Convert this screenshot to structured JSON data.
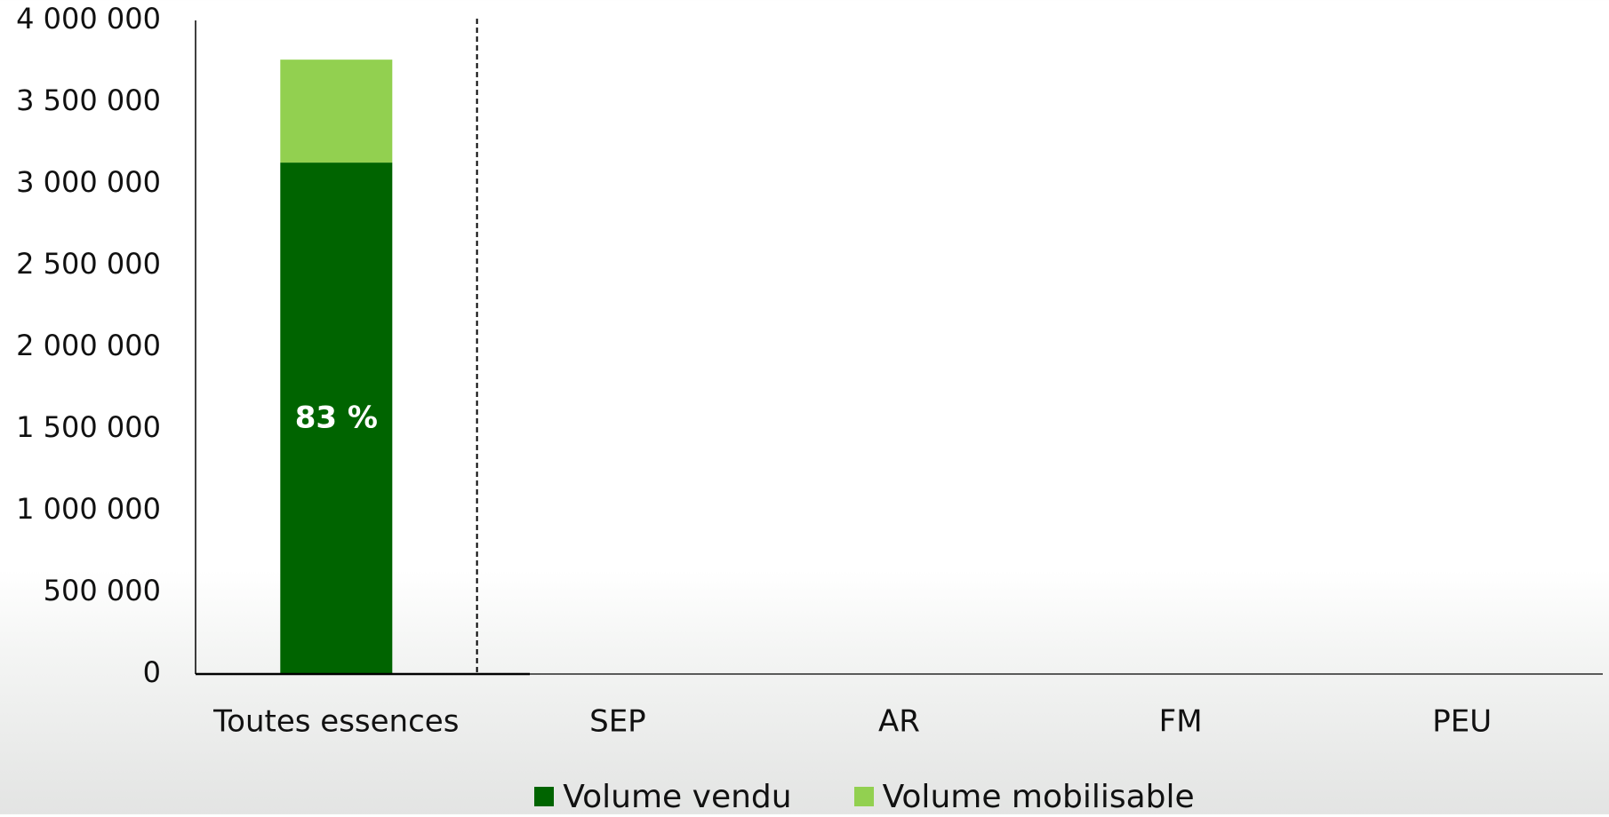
{
  "chart_data": {
    "type": "bar",
    "stacked": true,
    "categories": [
      "Toutes essences",
      "SEP",
      "AR",
      "FM",
      "PEU"
    ],
    "series": [
      {
        "name": "Volume vendu",
        "color": "#006400",
        "values": [
          3130000,
          0,
          0,
          0,
          0
        ]
      },
      {
        "name": "Volume mobilisable",
        "color": "#92d050",
        "values": [
          630000,
          0,
          0,
          0,
          0
        ]
      }
    ],
    "bar_labels": [
      "83 %",
      "",
      "",
      "",
      ""
    ],
    "ylim": [
      0,
      4000000
    ],
    "yticks": [
      0,
      500000,
      1000000,
      1500000,
      2000000,
      2500000,
      3000000,
      3500000,
      4000000
    ],
    "ytick_labels": [
      "0",
      "500 000",
      "1 000 000",
      "1 500 000",
      "2 000 000",
      "2 500 000",
      "3 000 000",
      "3 500 000",
      "4 000 000"
    ],
    "title": "",
    "xlabel": "",
    "ylabel": "",
    "grid": false,
    "separator_after_first_category": true,
    "legend_position": "bottom"
  }
}
